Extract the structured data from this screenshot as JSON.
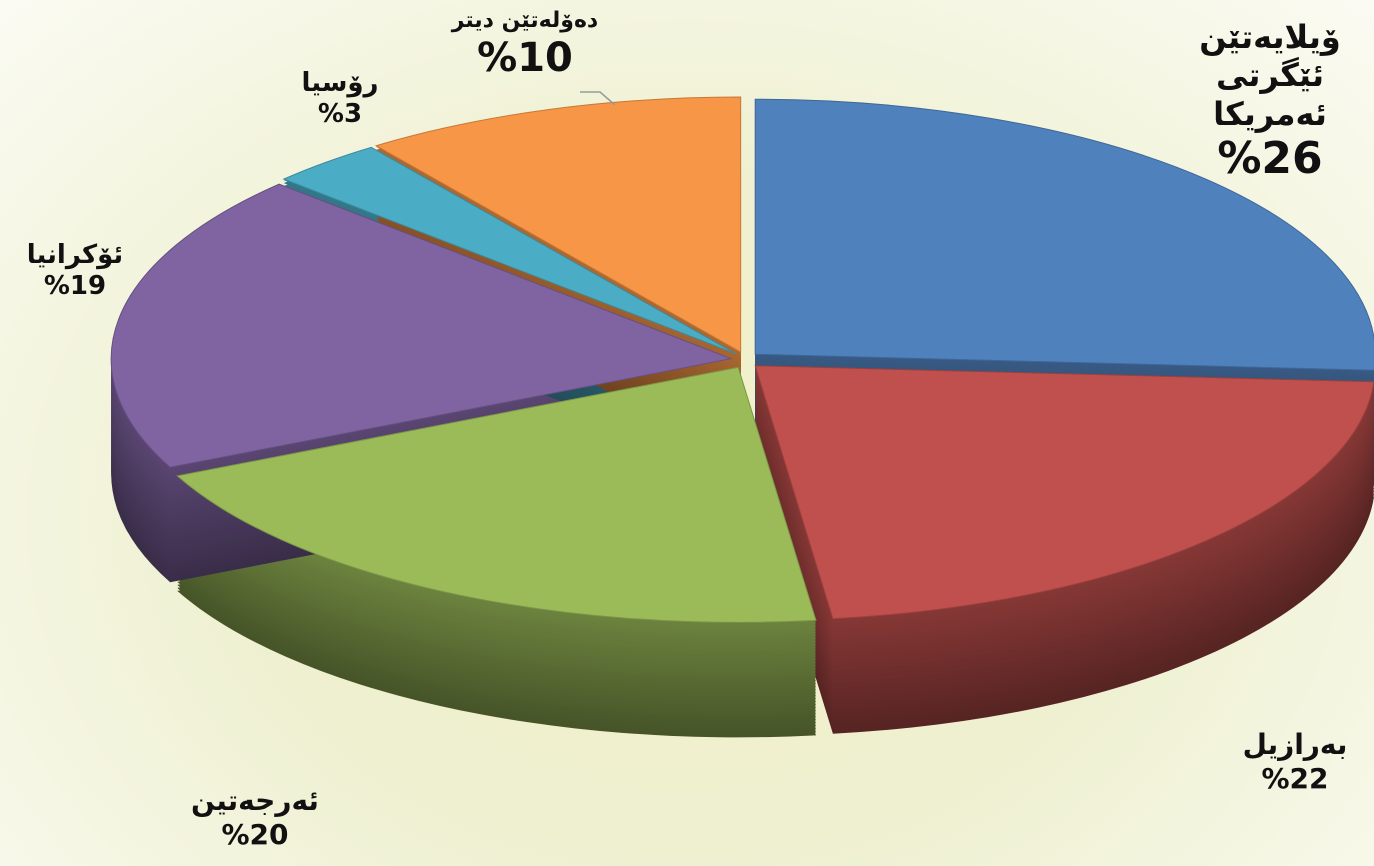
{
  "chart_data": {
    "type": "pie",
    "categories": [
      "ۆیلایەتێن ئێگرتی ئەمریکا",
      "بەرازیل",
      "ئەرجەتین",
      "ئۆکرانیا",
      "رۆسیا",
      "دەۆلەتێن دیتر"
    ],
    "values": [
      26,
      22,
      20,
      19,
      3,
      10
    ],
    "value_labels": [
      "%26",
      "%22",
      "%20",
      "%19",
      "%3",
      "%10"
    ],
    "colors": [
      "#4f81bd",
      "#c0504d",
      "#9bbb59",
      "#8064a2",
      "#4bacc6",
      "#f79646"
    ]
  }
}
